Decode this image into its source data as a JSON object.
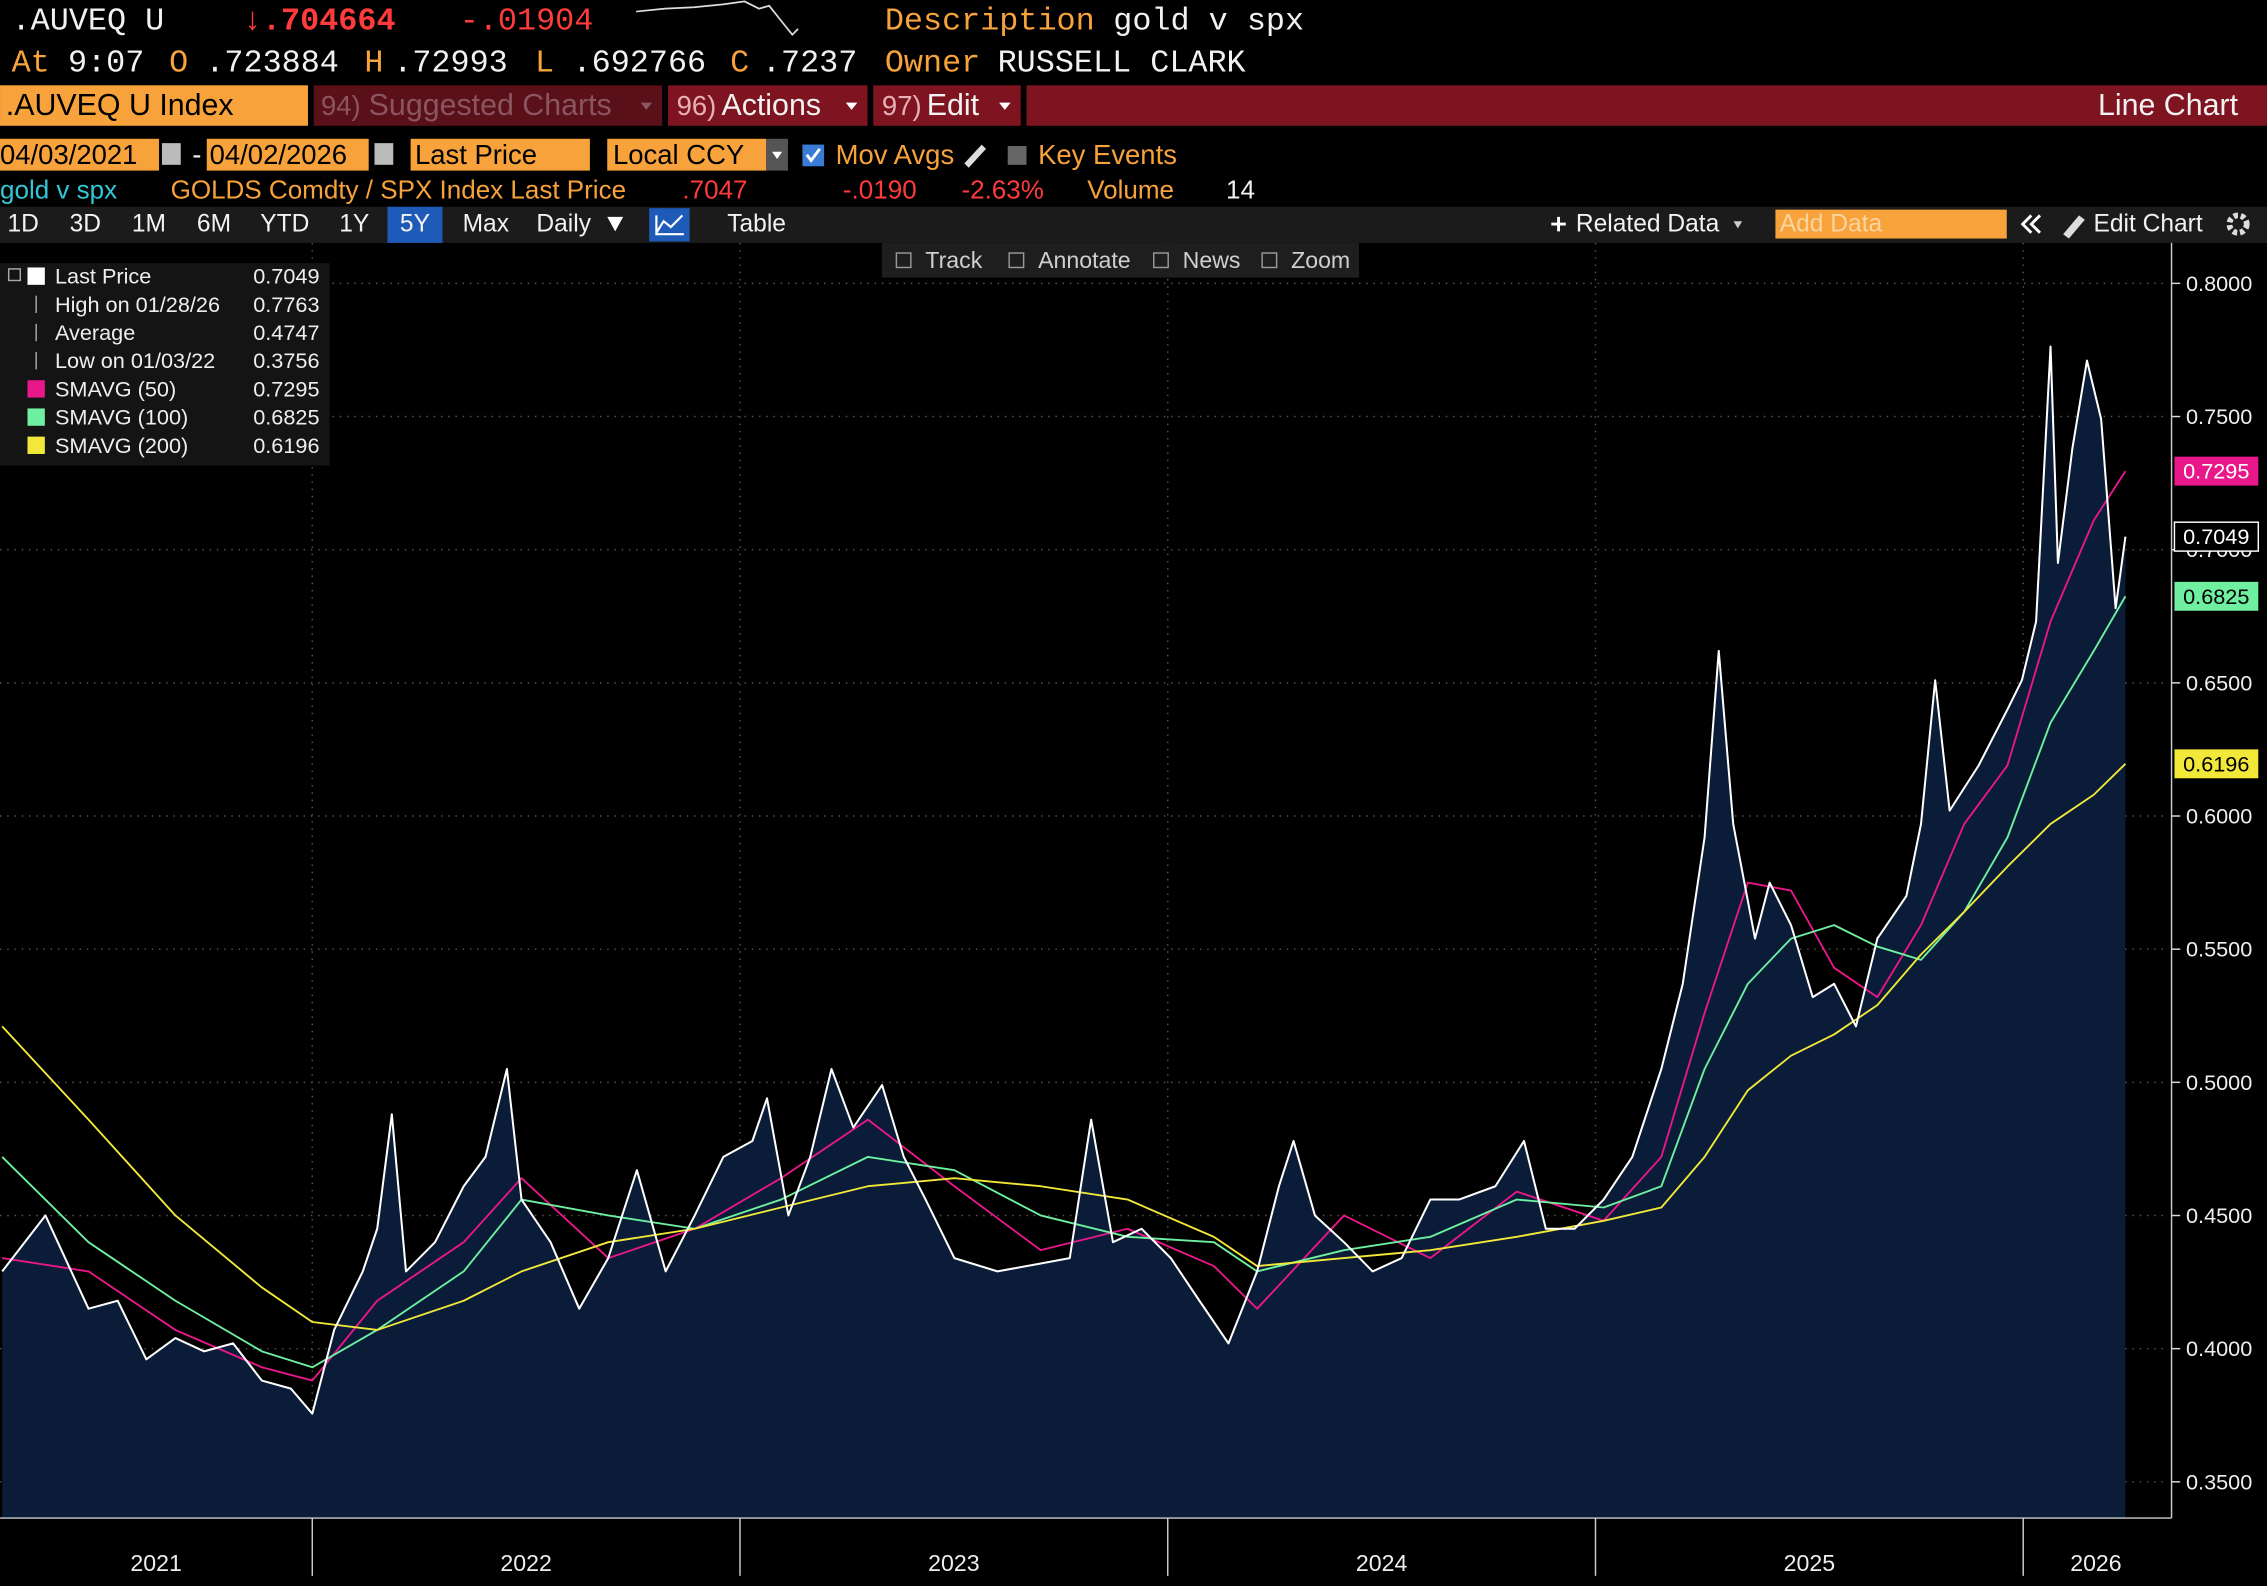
{
  "header": {
    "ticker": ".AUVEQ U",
    "last": "↓.704664",
    "change": "-.01904",
    "description_label": "Description",
    "description": "gold v spx",
    "at_label": "At",
    "time": "9:07",
    "open_label": "O",
    "open": ".723884",
    "high_label": "H",
    "high": ".72993",
    "low_label": "L",
    "low": ".692766",
    "close_label": "C",
    "close": ".7237",
    "owner_label": "Owner",
    "owner": "RUSSELL CLARK"
  },
  "menu": {
    "security": ".AUVEQ U Index",
    "items": [
      {
        "num": "94)",
        "label": "Suggested Charts"
      },
      {
        "num": "96)",
        "label": "Actions"
      },
      {
        "num": "97)",
        "label": "Edit"
      }
    ],
    "chart_type": "Line Chart"
  },
  "settings": {
    "start": "04/03/2021",
    "sep": "-",
    "end": "04/02/2026",
    "currency": "Local CCY",
    "mov_avgs": "Mov Avgs",
    "key_events": "Key Events"
  },
  "security_line": {
    "source": "GOLDS Comdty / SPX Index Last Price",
    "last": ".7047",
    "change": "-.0190",
    "pct": "-2.63%",
    "volume_label": "Volume",
    "volume": "14"
  },
  "toolbar": {
    "periods": [
      "1D",
      "3D",
      "1M",
      "6M",
      "YTD",
      "1Y",
      "5Y",
      "Max"
    ],
    "frequency": "Daily",
    "table": "Table",
    "related": "Related Data",
    "add_data": "Add Data",
    "edit_chart": "Edit Chart"
  },
  "chart_tools": [
    "Track",
    "Annotate",
    "News",
    "Zoom"
  ],
  "chart_data": {
    "type": "line",
    "grid": true,
    "legend": "upper left",
    "xlim": [
      2021.27,
      2026.34
    ],
    "xticks": [
      2021,
      2022,
      2023,
      2024,
      2025,
      2026
    ],
    "ylim": [
      0.3364,
      0.8152
    ],
    "yticks": [
      {
        "value": 0.35,
        "label": "0.3500"
      },
      {
        "value": 0.4,
        "label": "0.4000"
      },
      {
        "value": 0.45,
        "label": "0.4500"
      },
      {
        "value": 0.5,
        "label": "0.5000"
      },
      {
        "value": 0.55,
        "label": "0.5500"
      },
      {
        "value": 0.6,
        "label": "0.6000"
      },
      {
        "value": 0.65,
        "label": "0.6500"
      },
      {
        "value": 0.7,
        "label": "0.7000"
      },
      {
        "value": 0.75,
        "label": "0.7500"
      },
      {
        "value": 0.8,
        "label": "0.8000"
      }
    ],
    "series": [
      {
        "name": "Last Price",
        "color": "#ffffff",
        "fill": "#0a1c38",
        "x": [
          2021.275,
          2021.376,
          2021.477,
          2021.545,
          2021.612,
          2021.68,
          2021.747,
          2021.815,
          2021.882,
          2021.95,
          2022.0,
          2022.051,
          2022.118,
          2022.152,
          2022.186,
          2022.219,
          2022.287,
          2022.354,
          2022.405,
          2022.455,
          2022.489,
          2022.557,
          2022.624,
          2022.692,
          2022.759,
          2022.826,
          2022.894,
          2022.961,
          2023.029,
          2023.063,
          2023.113,
          2023.164,
          2023.214,
          2023.265,
          2023.332,
          2023.383,
          2023.434,
          2023.501,
          2023.602,
          2023.703,
          2023.771,
          2023.821,
          2023.872,
          2023.939,
          2024.007,
          2024.074,
          2024.142,
          2024.209,
          2024.26,
          2024.294,
          2024.344,
          2024.412,
          2024.479,
          2024.547,
          2024.614,
          2024.681,
          2024.766,
          2024.833,
          2024.884,
          2024.951,
          2025.019,
          2025.086,
          2025.154,
          2025.204,
          2025.255,
          2025.288,
          2025.322,
          2025.373,
          2025.407,
          2025.457,
          2025.508,
          2025.558,
          2025.609,
          2025.659,
          2025.727,
          2025.761,
          2025.794,
          2025.828,
          2025.896,
          2025.963,
          2025.997,
          2026.03,
          2026.064,
          2026.081,
          2026.115,
          2026.149,
          2026.182,
          2026.216,
          2026.239
        ],
        "values": [
          0.429,
          0.45,
          0.415,
          0.418,
          0.396,
          0.404,
          0.399,
          0.402,
          0.388,
          0.385,
          0.3756,
          0.407,
          0.429,
          0.445,
          0.488,
          0.429,
          0.44,
          0.461,
          0.472,
          0.505,
          0.456,
          0.44,
          0.415,
          0.434,
          0.467,
          0.429,
          0.45,
          0.472,
          0.478,
          0.494,
          0.45,
          0.472,
          0.505,
          0.483,
          0.499,
          0.472,
          0.456,
          0.434,
          0.429,
          0.432,
          0.434,
          0.486,
          0.44,
          0.445,
          0.434,
          0.418,
          0.402,
          0.429,
          0.461,
          0.478,
          0.45,
          0.44,
          0.429,
          0.434,
          0.456,
          0.456,
          0.461,
          0.478,
          0.445,
          0.445,
          0.456,
          0.472,
          0.505,
          0.537,
          0.592,
          0.662,
          0.597,
          0.554,
          0.575,
          0.559,
          0.532,
          0.537,
          0.521,
          0.554,
          0.57,
          0.597,
          0.651,
          0.602,
          0.619,
          0.64,
          0.651,
          0.673,
          0.7763,
          0.695,
          0.738,
          0.771,
          0.749,
          0.678,
          0.7049
        ]
      },
      {
        "name": "SMAVG (50)",
        "color": "#e8178a",
        "x": [
          2021.275,
          2021.477,
          2021.68,
          2021.882,
          2022.0,
          2022.152,
          2022.354,
          2022.489,
          2022.692,
          2022.894,
          2023.096,
          2023.299,
          2023.501,
          2023.703,
          2023.906,
          2024.108,
          2024.209,
          2024.412,
          2024.614,
          2024.816,
          2025.019,
          2025.154,
          2025.255,
          2025.356,
          2025.457,
          2025.558,
          2025.659,
          2025.761,
          2025.862,
          2025.963,
          2026.064,
          2026.165,
          2026.239
        ],
        "values": [
          0.434,
          0.429,
          0.407,
          0.393,
          0.388,
          0.418,
          0.44,
          0.464,
          0.434,
          0.445,
          0.464,
          0.486,
          0.461,
          0.437,
          0.445,
          0.431,
          0.415,
          0.45,
          0.434,
          0.459,
          0.448,
          0.472,
          0.526,
          0.575,
          0.572,
          0.543,
          0.532,
          0.559,
          0.597,
          0.619,
          0.673,
          0.711,
          0.7295
        ]
      },
      {
        "name": "SMAVG (100)",
        "color": "#6ef0a0",
        "x": [
          2021.275,
          2021.477,
          2021.68,
          2021.882,
          2022.0,
          2022.152,
          2022.354,
          2022.489,
          2022.692,
          2022.894,
          2023.096,
          2023.299,
          2023.501,
          2023.703,
          2023.906,
          2024.108,
          2024.209,
          2024.412,
          2024.614,
          2024.816,
          2025.019,
          2025.154,
          2025.255,
          2025.356,
          2025.457,
          2025.558,
          2025.659,
          2025.761,
          2025.862,
          2025.963,
          2026.064,
          2026.165,
          2026.239
        ],
        "values": [
          0.472,
          0.44,
          0.418,
          0.399,
          0.393,
          0.407,
          0.429,
          0.456,
          0.45,
          0.445,
          0.456,
          0.472,
          0.467,
          0.45,
          0.442,
          0.44,
          0.429,
          0.437,
          0.442,
          0.456,
          0.453,
          0.461,
          0.505,
          0.537,
          0.554,
          0.559,
          0.551,
          0.546,
          0.564,
          0.592,
          0.635,
          0.662,
          0.6825
        ]
      },
      {
        "name": "SMAVG (200)",
        "color": "#f2e83a",
        "x": [
          2021.275,
          2021.477,
          2021.68,
          2021.882,
          2022.0,
          2022.152,
          2022.354,
          2022.489,
          2022.692,
          2022.894,
          2023.096,
          2023.299,
          2023.501,
          2023.703,
          2023.906,
          2024.108,
          2024.209,
          2024.412,
          2024.614,
          2024.816,
          2025.019,
          2025.154,
          2025.255,
          2025.356,
          2025.457,
          2025.558,
          2025.659,
          2025.761,
          2025.862,
          2025.963,
          2026.064,
          2026.165,
          2026.239
        ],
        "values": [
          0.521,
          0.486,
          0.45,
          0.423,
          0.41,
          0.407,
          0.418,
          0.429,
          0.44,
          0.445,
          0.453,
          0.461,
          0.464,
          0.461,
          0.456,
          0.442,
          0.431,
          0.434,
          0.437,
          0.442,
          0.448,
          0.453,
          0.472,
          0.497,
          0.51,
          0.518,
          0.529,
          0.548,
          0.564,
          0.581,
          0.597,
          0.608,
          0.6196
        ]
      }
    ],
    "stats": [
      {
        "label": "High on 01/28/26",
        "value": 0.7763
      },
      {
        "label": "Average",
        "value": 0.4747
      },
      {
        "label": "Low on 01/03/22",
        "value": 0.3756
      }
    ]
  }
}
